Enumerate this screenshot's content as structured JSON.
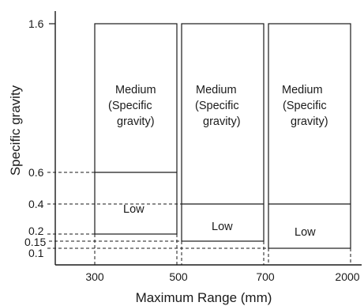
{
  "diagram": {
    "y_axis_title": "Specific gravity",
    "x_axis_title": "Maximum Range (mm)",
    "y_ticks": [
      "1.6",
      "0.6",
      "0.4",
      "0.2",
      "0.15",
      "0.1"
    ],
    "x_ticks": [
      "300",
      "500",
      "700",
      "2000"
    ],
    "boxes": [
      {
        "range": "300 to 500",
        "medium_lines": [
          "Medium",
          "(Specific",
          "gravity)"
        ],
        "medium_range": [
          0.6,
          1.6
        ],
        "low_label": "Low",
        "low_range": [
          0.2,
          0.6
        ]
      },
      {
        "range": "500 to 700",
        "medium_lines": [
          "Medium",
          "(Specific",
          "gravity)"
        ],
        "medium_range": [
          0.4,
          1.6
        ],
        "low_label": "Low",
        "low_range": [
          0.15,
          0.4
        ]
      },
      {
        "range": "700 to 2000",
        "medium_lines": [
          "Medium",
          "(Specific",
          "gravity)"
        ],
        "medium_range": [
          0.4,
          1.6
        ],
        "low_label": "Low",
        "low_range": [
          0.1,
          0.4
        ]
      }
    ]
  }
}
